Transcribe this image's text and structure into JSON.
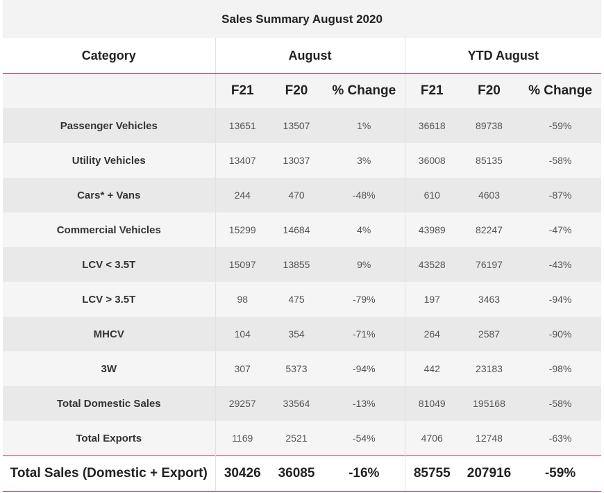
{
  "title": "Sales Summary August 2020",
  "headers": {
    "category": "Category",
    "august": "August",
    "ytd": "YTD August"
  },
  "subheaders": [
    "F21",
    "F20",
    "% Change",
    "F21",
    "F20",
    "% Change"
  ],
  "rows": [
    [
      "Passenger Vehicles",
      "13651",
      "13507",
      "1%",
      "36618",
      "89738",
      "-59%"
    ],
    [
      "Utility Vehicles",
      "13407",
      "13037",
      "3%",
      "36008",
      "85135",
      "-58%"
    ],
    [
      "Cars* + Vans",
      "244",
      "470",
      "-48%",
      "610",
      "4603",
      "-87%"
    ],
    [
      "Commercial Vehicles",
      "15299",
      "14684",
      "4%",
      "43989",
      "82247",
      "-47%"
    ],
    [
      "LCV < 3.5T",
      "15097",
      "13855",
      "9%",
      "43528",
      "76197",
      "-43%"
    ],
    [
      "LCV > 3.5T",
      "98",
      "475",
      "-79%",
      "197",
      "3463",
      "-94%"
    ],
    [
      "MHCV",
      "104",
      "354",
      "-71%",
      "264",
      "2587",
      "-90%"
    ],
    [
      "3W",
      "307",
      "5373",
      "-94%",
      "442",
      "23183",
      "-98%"
    ],
    [
      "Total Domestic Sales",
      "29257",
      "33564",
      "-13%",
      "81049",
      "195168",
      "-58%"
    ],
    [
      "Total Exports",
      "1169",
      "2521",
      "-54%",
      "4706",
      "12748",
      "-63%"
    ]
  ],
  "total": [
    "Total Sales (Domestic + Export)",
    "30426",
    "36085",
    "-16%",
    "85755",
    "207916",
    "-59%"
  ]
}
